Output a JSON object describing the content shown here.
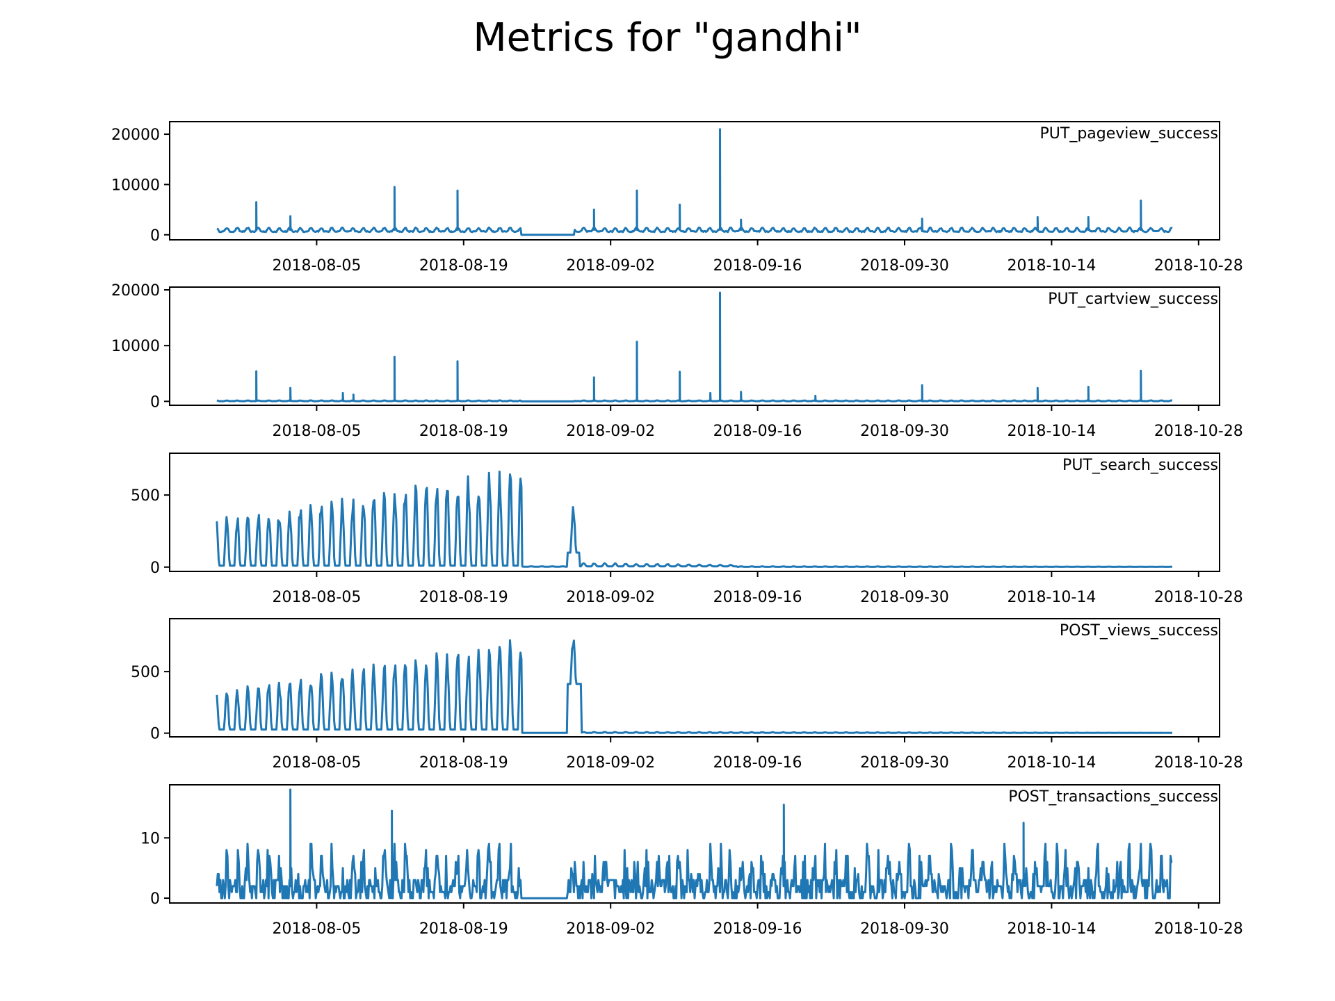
{
  "title": "Metrics for \"gandhi\"",
  "line_color": "#1f77b4",
  "chart_data": [
    {
      "type": "line",
      "series_label": "PUT_pageview_success",
      "x_ticks": [
        "2018-08-05",
        "2018-08-19",
        "2018-09-02",
        "2018-09-16",
        "2018-09-30",
        "2018-10-14",
        "2018-10-28"
      ],
      "y_ticks": [
        0,
        10000,
        20000
      ],
      "ylim": [
        -1000,
        22500
      ],
      "xlim": [
        "2018-07-22",
        "2018-10-30"
      ],
      "x_start": "2018-07-26T12:00",
      "x_end": "2018-10-25T12:00",
      "baseline": 1000,
      "noise": 700,
      "gap": [
        "2018-08-24T12:00",
        "2018-08-29T12:00"
      ],
      "gap_value": 0,
      "peaks": [
        {
          "date": "2018-07-30T06:00",
          "value": 6500
        },
        {
          "date": "2018-08-02T12:00",
          "value": 3700
        },
        {
          "date": "2018-08-12T10:00",
          "value": 9500
        },
        {
          "date": "2018-08-18T10:00",
          "value": 8800
        },
        {
          "date": "2018-08-31T10:00",
          "value": 5000
        },
        {
          "date": "2018-09-04T12:00",
          "value": 8800
        },
        {
          "date": "2018-09-08T14:00",
          "value": 6000
        },
        {
          "date": "2018-09-12T10:00",
          "value": 21000
        },
        {
          "date": "2018-09-14T10:00",
          "value": 3000
        },
        {
          "date": "2018-10-01T16:00",
          "value": 3200
        },
        {
          "date": "2018-10-12T16:00",
          "value": 3500
        },
        {
          "date": "2018-10-17T12:00",
          "value": 3500
        },
        {
          "date": "2018-10-22T12:00",
          "value": 6800
        }
      ]
    },
    {
      "type": "line",
      "series_label": "PUT_cartview_success",
      "x_ticks": [
        "2018-08-05",
        "2018-08-19",
        "2018-09-02",
        "2018-09-16",
        "2018-09-30",
        "2018-10-14",
        "2018-10-28"
      ],
      "y_ticks": [
        0,
        10000,
        20000
      ],
      "ylim": [
        -700,
        20500
      ],
      "xlim": [
        "2018-07-22",
        "2018-10-30"
      ],
      "x_start": "2018-07-26T12:00",
      "x_end": "2018-10-25T12:00",
      "baseline": 100,
      "noise": 120,
      "gap": [
        "2018-08-24T12:00",
        "2018-08-29T12:00"
      ],
      "gap_value": 0,
      "peaks": [
        {
          "date": "2018-07-30T06:00",
          "value": 5400
        },
        {
          "date": "2018-08-02T12:00",
          "value": 2400
        },
        {
          "date": "2018-08-07T12:00",
          "value": 1500
        },
        {
          "date": "2018-08-08T12:00",
          "value": 1200
        },
        {
          "date": "2018-08-12T10:00",
          "value": 8000
        },
        {
          "date": "2018-08-18T10:00",
          "value": 7200
        },
        {
          "date": "2018-08-31T10:00",
          "value": 4300
        },
        {
          "date": "2018-09-04T12:00",
          "value": 10700
        },
        {
          "date": "2018-09-08T14:00",
          "value": 5300
        },
        {
          "date": "2018-09-11T12:00",
          "value": 1500
        },
        {
          "date": "2018-09-12T10:00",
          "value": 19500
        },
        {
          "date": "2018-09-14T10:00",
          "value": 1700
        },
        {
          "date": "2018-09-21T12:00",
          "value": 1000
        },
        {
          "date": "2018-10-01T16:00",
          "value": 2900
        },
        {
          "date": "2018-10-12T16:00",
          "value": 2400
        },
        {
          "date": "2018-10-17T12:00",
          "value": 2600
        },
        {
          "date": "2018-10-22T12:00",
          "value": 5500
        }
      ]
    },
    {
      "type": "line",
      "series_label": "PUT_search_success",
      "x_ticks": [
        "2018-08-05",
        "2018-08-19",
        "2018-09-02",
        "2018-09-16",
        "2018-09-30",
        "2018-10-14",
        "2018-10-28"
      ],
      "y_ticks": [
        0,
        500
      ],
      "ylim": [
        -30,
        790
      ],
      "xlim": [
        "2018-07-22",
        "2018-10-30"
      ],
      "x_start": "2018-07-26T12:00",
      "x_end": "2018-10-25T12:00",
      "segments": [
        {
          "from": "2018-07-26T12:00",
          "to": "2018-08-24T12:00",
          "daily_peak_start": 350,
          "daily_peak_end": 700,
          "trough": 10
        },
        {
          "from": "2018-08-24T12:00",
          "to": "2018-08-28T20:00",
          "daily_peak_start": 5,
          "daily_peak_end": 5,
          "trough": 3
        },
        {
          "from": "2018-08-28T20:00",
          "to": "2018-08-30T00:00",
          "daily_peak_start": 450,
          "daily_peak_end": 450,
          "trough": 100
        },
        {
          "from": "2018-08-30T00:00",
          "to": "2018-09-14T00:00",
          "daily_peak_start": 30,
          "daily_peak_end": 15,
          "trough": 5
        },
        {
          "from": "2018-09-14T00:00",
          "to": "2018-10-25T12:00",
          "daily_peak_start": 5,
          "daily_peak_end": 3,
          "trough": 2
        }
      ]
    },
    {
      "type": "line",
      "series_label": "POST_views_success",
      "x_ticks": [
        "2018-08-05",
        "2018-08-19",
        "2018-09-02",
        "2018-09-16",
        "2018-09-30",
        "2018-10-14",
        "2018-10-28"
      ],
      "y_ticks": [
        0,
        500
      ],
      "ylim": [
        -30,
        930
      ],
      "xlim": [
        "2018-07-22",
        "2018-10-30"
      ],
      "x_start": "2018-07-26T12:00",
      "x_end": "2018-10-25T12:00",
      "segments": [
        {
          "from": "2018-07-26T12:00",
          "to": "2018-08-24T12:00",
          "daily_peak_start": 350,
          "daily_peak_end": 780,
          "trough": 30
        },
        {
          "from": "2018-08-24T12:00",
          "to": "2018-08-28T20:00",
          "daily_peak_start": 3,
          "daily_peak_end": 3,
          "trough": 2
        },
        {
          "from": "2018-08-28T20:00",
          "to": "2018-08-30T04:00",
          "daily_peak_start": 850,
          "daily_peak_end": 750,
          "trough": 400
        },
        {
          "from": "2018-08-30T04:00",
          "to": "2018-10-25T12:00",
          "daily_peak_start": 10,
          "daily_peak_end": 3,
          "trough": 2
        }
      ]
    },
    {
      "type": "line",
      "series_label": "POST_transactions_success",
      "x_ticks": [
        "2018-08-05",
        "2018-08-19",
        "2018-09-02",
        "2018-09-16",
        "2018-09-30",
        "2018-10-14",
        "2018-10-28"
      ],
      "y_ticks": [
        0,
        10
      ],
      "ylim": [
        -0.8,
        18.8
      ],
      "xlim": [
        "2018-07-22",
        "2018-10-30"
      ],
      "x_start": "2018-07-26T12:00",
      "x_end": "2018-10-25T12:00",
      "noisy_max": 9,
      "gap": [
        "2018-08-24T12:00",
        "2018-08-28T20:00"
      ],
      "gap_value": 0,
      "peaks": [
        {
          "date": "2018-08-02T12:00",
          "value": 18
        },
        {
          "date": "2018-08-12T04:00",
          "value": 14.5
        },
        {
          "date": "2018-09-18T12:00",
          "value": 15.5
        },
        {
          "date": "2018-10-11T08:00",
          "value": 12.5
        }
      ]
    }
  ]
}
